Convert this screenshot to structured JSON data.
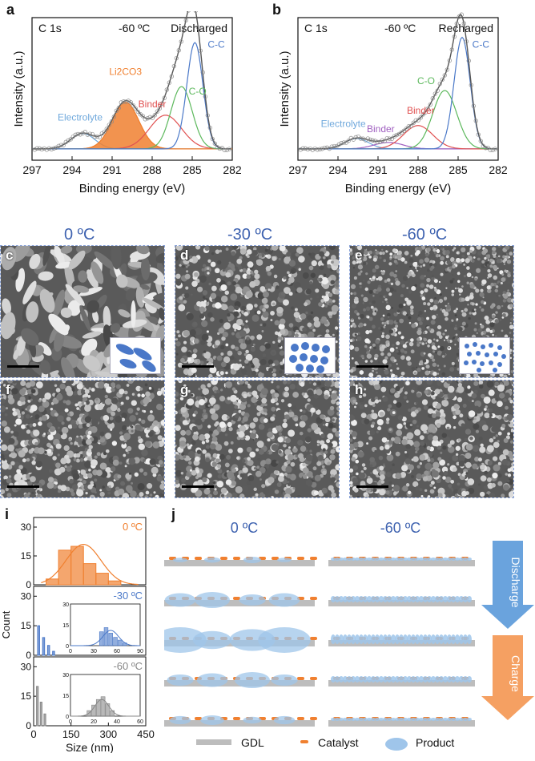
{
  "panel_letters": [
    "a",
    "b",
    "c",
    "d",
    "e",
    "f",
    "g",
    "h",
    "i",
    "j"
  ],
  "panel_a": {
    "element": "C 1s",
    "temp": "-60 ºC",
    "state": "Discharged",
    "ylabel": "Intensity (a.u.)",
    "xlabel": "Binding energy (eV)",
    "xticks": [
      "297",
      "294",
      "291",
      "288",
      "285",
      "282"
    ],
    "peaks": {
      "electrolyte": "Electrolyte",
      "li2co3": "Li2CO3",
      "binder": "Binder",
      "co": "C-O",
      "cc": "C-C"
    },
    "colors": {
      "electrolyte": "#6fa8dc",
      "li2co3": "#f08030",
      "binder": "#e05050",
      "co": "#5cb85c",
      "cc": "#4a78c8"
    }
  },
  "panel_b": {
    "element": "C 1s",
    "temp": "-60 ºC",
    "state": "Recharged",
    "ylabel": "Intensity (a.u.)",
    "xlabel": "Binding energy (eV)",
    "xticks": [
      "297",
      "294",
      "291",
      "288",
      "285",
      "282"
    ],
    "peaks": {
      "electrolyte": "Electrolyte",
      "binder1": "Binder",
      "binder2": "Binder",
      "co": "C-O",
      "cc": "C-C"
    },
    "colors": {
      "electrolyte": "#6fa8dc",
      "binder1": "#a060c0",
      "binder2": "#e05050",
      "co": "#5cb85c",
      "cc": "#4a78c8"
    }
  },
  "sem_titles": [
    "0 ºC",
    "-30 ºC",
    "-60 ºC"
  ],
  "panel_i": {
    "ylabel": "Count",
    "xlabel": "Size (nm)",
    "xticks": [
      "0",
      "150",
      "300",
      "450"
    ],
    "yticks": [
      "0",
      "15",
      "30"
    ],
    "series": [
      {
        "name": "0 ºC",
        "color": "#f08030"
      },
      {
        "name": "-30 ºC",
        "color": "#4a78c8"
      },
      {
        "name": "-60 ºC",
        "color": "#888888"
      }
    ],
    "inset_b": {
      "xticks": [
        "0",
        "30",
        "60",
        "90"
      ],
      "yticks": [
        "0",
        "15",
        "30"
      ]
    },
    "inset_c": {
      "xticks": [
        "0",
        "20",
        "40",
        "60"
      ],
      "yticks": [
        "0",
        "15",
        "30"
      ]
    }
  },
  "panel_j": {
    "col_titles": [
      "0 ºC",
      "-60 ºC"
    ],
    "discharge": "Discharge",
    "charge": "Charge",
    "legend": {
      "gdl": "GDL",
      "catalyst": "Catalyst",
      "product": "Product"
    }
  },
  "chart_data": [
    {
      "type": "line",
      "title": "C 1s -60 ºC Discharged",
      "xlabel": "Binding energy (eV)",
      "ylabel": "Intensity (a.u.)",
      "xlim": [
        297,
        282
      ],
      "series": [
        {
          "name": "Electrolyte",
          "center": 293.2
        },
        {
          "name": "Li2CO3",
          "center": 290.0
        },
        {
          "name": "Binder",
          "center": 286.8
        },
        {
          "name": "C-O",
          "center": 285.8
        },
        {
          "name": "C-C",
          "center": 284.8
        }
      ]
    },
    {
      "type": "line",
      "title": "C 1s -60 ºC Recharged",
      "xlabel": "Binding energy (eV)",
      "ylabel": "Intensity (a.u.)",
      "xlim": [
        297,
        282
      ],
      "series": [
        {
          "name": "Electrolyte",
          "center": 292.6
        },
        {
          "name": "Binder",
          "center": 290.2
        },
        {
          "name": "Binder",
          "center": 288.0
        },
        {
          "name": "C-O",
          "center": 286.0
        },
        {
          "name": "C-C",
          "center": 284.7
        }
      ]
    },
    {
      "type": "bar",
      "xlabel": "Size (nm)",
      "ylabel": "Count",
      "series": [
        {
          "name": "0 ºC",
          "bins": [
            75,
            125,
            175,
            225,
            275,
            325,
            375
          ],
          "counts": [
            3,
            18,
            20,
            11,
            6,
            2,
            0
          ]
        },
        {
          "name": "-30 ºC",
          "bins": [
            20,
            40,
            60,
            80
          ],
          "counts": [
            15,
            9,
            5,
            2
          ]
        },
        {
          "name": "-60 ºC",
          "bins": [
            15,
            30,
            45
          ],
          "counts": [
            20,
            12,
            6
          ]
        }
      ]
    }
  ]
}
